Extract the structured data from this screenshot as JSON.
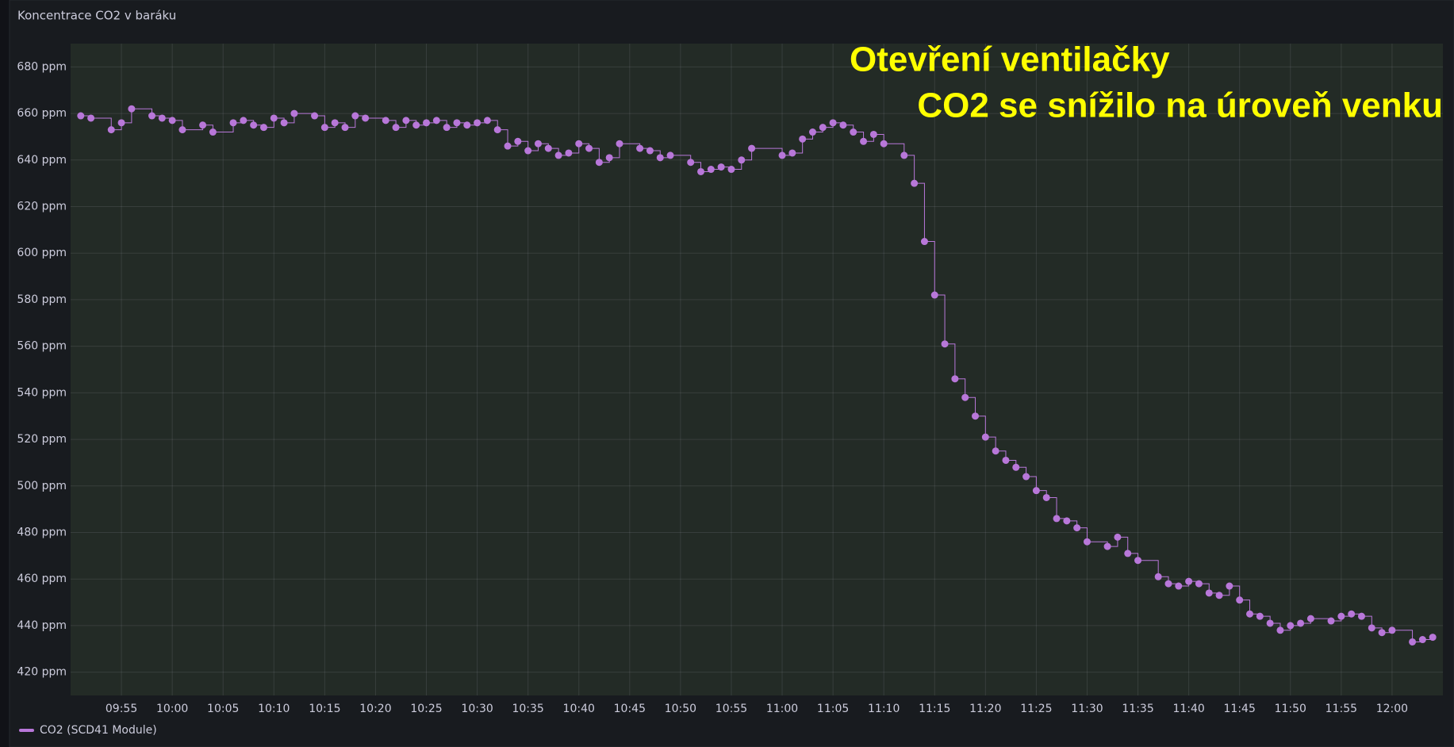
{
  "chart_data": {
    "type": "line",
    "title": "Koncentrace CO2 v baráku",
    "annotations": [
      "Otevření ventilačky",
      "CO2 se snížilo na úroveň venku"
    ],
    "step": "after",
    "grid": true,
    "legend": "bottom-left",
    "xlim": [
      "09:50",
      "12:05"
    ],
    "xticks": [
      "09:55",
      "10:00",
      "10:05",
      "10:10",
      "10:15",
      "10:20",
      "10:25",
      "10:30",
      "10:35",
      "10:40",
      "10:45",
      "10:50",
      "10:55",
      "11:00",
      "11:05",
      "11:10",
      "11:15",
      "11:20",
      "11:25",
      "11:30",
      "11:35",
      "11:40",
      "11:45",
      "11:50",
      "11:55",
      "12:00"
    ],
    "ylim": [
      410,
      690
    ],
    "yticks": [
      {
        "value": 420,
        "label": "420 ppm"
      },
      {
        "value": 440,
        "label": "440 ppm"
      },
      {
        "value": 460,
        "label": "460 ppm"
      },
      {
        "value": 480,
        "label": "480 ppm"
      },
      {
        "value": 500,
        "label": "500 ppm"
      },
      {
        "value": 520,
        "label": "520 ppm"
      },
      {
        "value": 540,
        "label": "540 ppm"
      },
      {
        "value": 560,
        "label": "560 ppm"
      },
      {
        "value": 580,
        "label": "580 ppm"
      },
      {
        "value": 600,
        "label": "600 ppm"
      },
      {
        "value": 620,
        "label": "620 ppm"
      },
      {
        "value": 640,
        "label": "640 ppm"
      },
      {
        "value": 660,
        "label": "660 ppm"
      },
      {
        "value": 680,
        "label": "680 ppm"
      }
    ],
    "x": [
      "09:51",
      "09:52",
      "09:54",
      "09:55",
      "09:56",
      "09:58",
      "09:59",
      "10:00",
      "10:01",
      "10:03",
      "10:04",
      "10:06",
      "10:07",
      "10:08",
      "10:09",
      "10:10",
      "10:11",
      "10:12",
      "10:14",
      "10:15",
      "10:16",
      "10:17",
      "10:18",
      "10:19",
      "10:21",
      "10:22",
      "10:23",
      "10:24",
      "10:25",
      "10:26",
      "10:27",
      "10:28",
      "10:29",
      "10:30",
      "10:31",
      "10:32",
      "10:33",
      "10:34",
      "10:35",
      "10:36",
      "10:37",
      "10:38",
      "10:39",
      "10:40",
      "10:41",
      "10:42",
      "10:43",
      "10:44",
      "10:46",
      "10:47",
      "10:48",
      "10:49",
      "10:51",
      "10:52",
      "10:53",
      "10:54",
      "10:55",
      "10:56",
      "10:57",
      "11:00",
      "11:01",
      "11:02",
      "11:03",
      "11:04",
      "11:05",
      "11:06",
      "11:07",
      "11:08",
      "11:09",
      "11:10",
      "11:12",
      "11:13",
      "11:14",
      "11:15",
      "11:16",
      "11:17",
      "11:18",
      "11:19",
      "11:20",
      "11:21",
      "11:22",
      "11:23",
      "11:24",
      "11:25",
      "11:26",
      "11:27",
      "11:28",
      "11:29",
      "11:30",
      "11:32",
      "11:33",
      "11:34",
      "11:35",
      "11:37",
      "11:38",
      "11:39",
      "11:40",
      "11:41",
      "11:42",
      "11:43",
      "11:44",
      "11:45",
      "11:46",
      "11:47",
      "11:48",
      "11:49",
      "11:50",
      "11:51",
      "11:52",
      "11:54",
      "11:55",
      "11:56",
      "11:57",
      "11:58",
      "11:59",
      "12:00",
      "12:02",
      "12:03",
      "12:04"
    ],
    "series": [
      {
        "name": "CO2 (SCD41 Module)",
        "color": "#b877d9",
        "values": [
          659,
          658,
          653,
          656,
          662,
          659,
          658,
          657,
          653,
          655,
          652,
          656,
          657,
          655,
          654,
          658,
          656,
          660,
          659,
          654,
          656,
          654,
          659,
          658,
          657,
          654,
          657,
          655,
          656,
          657,
          654,
          656,
          655,
          656,
          657,
          653,
          646,
          648,
          644,
          647,
          645,
          642,
          643,
          647,
          645,
          639,
          641,
          647,
          645,
          644,
          641,
          642,
          639,
          635,
          636,
          637,
          636,
          640,
          645,
          642,
          643,
          649,
          652,
          654,
          656,
          655,
          652,
          648,
          651,
          647,
          642,
          630,
          605,
          582,
          561,
          546,
          538,
          530,
          521,
          515,
          511,
          508,
          504,
          498,
          495,
          486,
          485,
          482,
          476,
          474,
          478,
          471,
          468,
          461,
          458,
          457,
          459,
          458,
          454,
          453,
          457,
          451,
          445,
          444,
          441,
          438,
          440,
          441,
          443,
          442,
          444,
          445,
          444,
          439,
          437,
          438,
          433,
          434,
          435
        ]
      }
    ]
  }
}
